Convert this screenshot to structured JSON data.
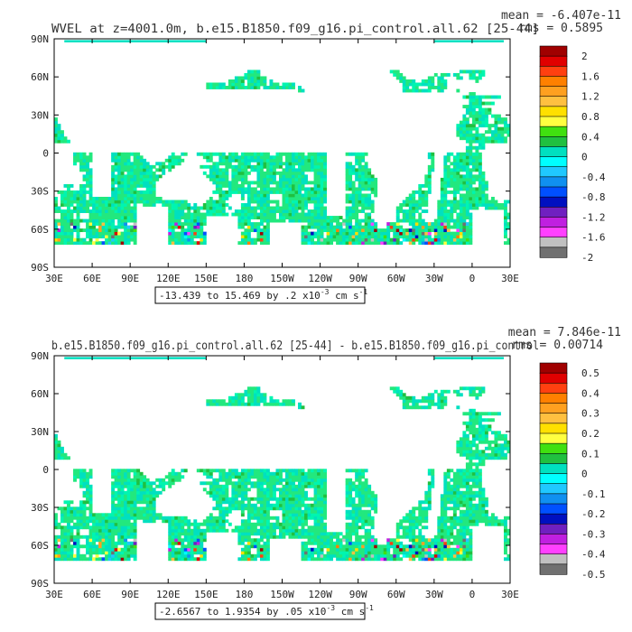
{
  "chart_data": [
    {
      "type": "heatmap",
      "title": "WVEL at z=4001.0m, b.e15.B1850.f09_g16.pi_control.all.62 [25-44]",
      "stats": {
        "mean": "mean = -6.407e-11",
        "rms": "rms = 0.5895"
      },
      "x_ticks": [
        "30E",
        "60E",
        "90E",
        "120E",
        "150E",
        "180",
        "150W",
        "120W",
        "90W",
        "60W",
        "30W",
        "0",
        "30E"
      ],
      "y_ticks": [
        "90N",
        "60N",
        "30N",
        "0",
        "30S",
        "60S",
        "90S"
      ],
      "xlim": [
        30,
        390
      ],
      "ylim": [
        -90,
        90
      ],
      "range_label": "-13.439 to 15.469 by .2 x10",
      "range_units": " cm s",
      "exp1": "-3",
      "exp2": "-1",
      "colorbar_labels": [
        "2",
        "1.6",
        "1.2",
        "0.8",
        "0.4",
        "0",
        "-0.4",
        "-0.8",
        "-1.2",
        "-1.6",
        "-2"
      ],
      "colors": [
        "#a00000",
        "#e00000",
        "#ff4010",
        "#ff8000",
        "#ffa020",
        "#ffc040",
        "#ffe000",
        "#ffff40",
        "#40e010",
        "#20c040",
        "#00e0c0",
        "#00ffff",
        "#20c8ff",
        "#1090f0",
        "#0050ff",
        "#0010c0",
        "#7020c0",
        "#c020e0",
        "#ff40ff",
        "#c0c0c0",
        "#707070"
      ],
      "background_value_color": "#22e87e"
    },
    {
      "type": "heatmap",
      "title": "b.e15.B1850.f09_g16.pi_control.all.62 [25-44] - b.e15.B1850.f09_g16.pi_control",
      "stats": {
        "mean": "mean = 7.846e-11",
        "rms": "rms = 0.00714"
      },
      "x_ticks": [
        "30E",
        "60E",
        "90E",
        "120E",
        "150E",
        "180",
        "150W",
        "120W",
        "90W",
        "60W",
        "30W",
        "0",
        "30E"
      ],
      "y_ticks": [
        "90N",
        "60N",
        "30N",
        "0",
        "30S",
        "60S",
        "90S"
      ],
      "xlim": [
        30,
        390
      ],
      "ylim": [
        -90,
        90
      ],
      "range_label": "-2.6567 to 1.9354 by .05 x10",
      "range_units": " cm s",
      "exp1": "-3",
      "exp2": "-1",
      "colorbar_labels": [
        "0.5",
        "0.4",
        "0.3",
        "0.2",
        "0.1",
        "0",
        "-0.1",
        "-0.2",
        "-0.3",
        "-0.4",
        "-0.5"
      ],
      "colors": [
        "#a00000",
        "#e00000",
        "#ff4010",
        "#ff8000",
        "#ffa020",
        "#ffc040",
        "#ffe000",
        "#ffff40",
        "#40e010",
        "#20c040",
        "#00e0c0",
        "#00ffff",
        "#20c8ff",
        "#1090f0",
        "#0050ff",
        "#0010c0",
        "#7020c0",
        "#c020e0",
        "#ff40ff",
        "#c0c0c0",
        "#707070"
      ],
      "background_value_color": "#22e87e"
    }
  ]
}
